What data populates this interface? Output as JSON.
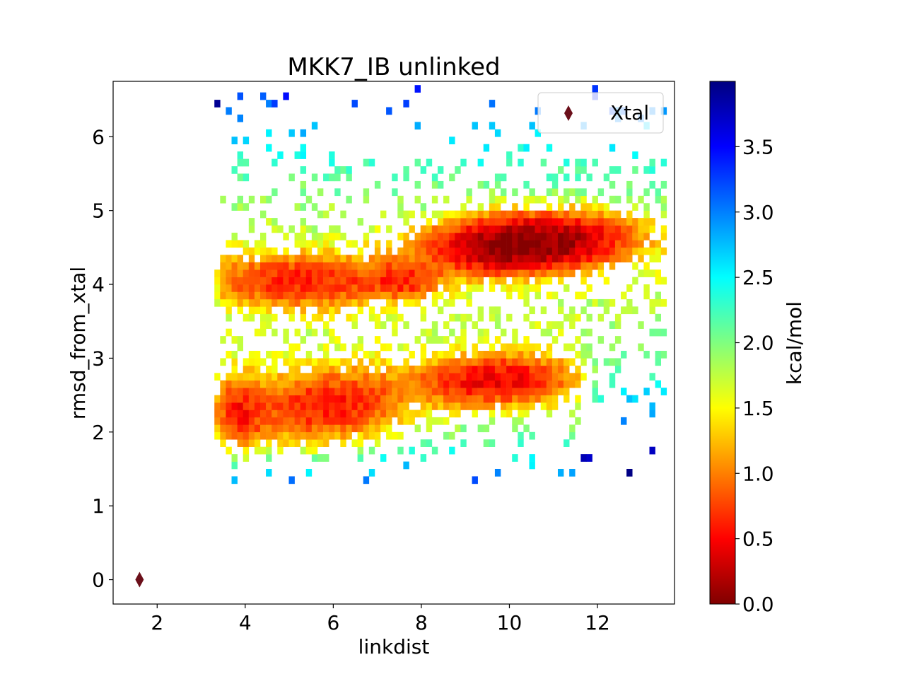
{
  "chart_data": {
    "type": "heatmap",
    "title": "MKK7_IB unlinked",
    "xlabel": "linkdist",
    "ylabel": "rmsd_from_xtal",
    "xlim": [
      1.0,
      13.75
    ],
    "ylim": [
      -0.33,
      6.75
    ],
    "xticks": [
      2,
      4,
      6,
      8,
      10,
      12
    ],
    "yticks": [
      0,
      1,
      2,
      3,
      4,
      5,
      6
    ],
    "colorbar": {
      "label": "kcal/mol",
      "range": [
        0.0,
        4.0
      ],
      "ticks": [
        "0.0",
        "0.5",
        "1.0",
        "1.5",
        "2.0",
        "2.5",
        "3.0",
        "3.5"
      ],
      "tick_values": [
        0.0,
        0.5,
        1.0,
        1.5,
        2.0,
        2.5,
        3.0,
        3.5
      ],
      "colormap": "jet_reversed"
    },
    "legend": {
      "position": "top-right",
      "entries": [
        {
          "label": "Xtal",
          "marker": "diamond",
          "color": "#6b0f1a"
        }
      ]
    },
    "reference_point": {
      "name": "Xtal",
      "x": 1.6,
      "y": 0.0
    },
    "bin_width": {
      "x": 0.13,
      "y": 0.1
    },
    "density_clusters": [
      {
        "x": 10.3,
        "y": 4.5,
        "sx": 1.25,
        "sy": 0.22,
        "rho": 0.18,
        "weight": 1.0,
        "extent_x": [
          7.5,
          13.0
        ],
        "extent_y": [
          3.8,
          5.3
        ]
      },
      {
        "x": 9.6,
        "y": 2.65,
        "sx": 1.0,
        "sy": 0.2,
        "rho": 0.1,
        "weight": 0.42,
        "extent_x": [
          7.8,
          11.7
        ],
        "extent_y": [
          2.2,
          3.2
        ]
      },
      {
        "x": 5.8,
        "y": 2.3,
        "sx": 1.1,
        "sy": 0.3,
        "rho": 0.2,
        "weight": 0.32,
        "extent_x": [
          3.4,
          7.6
        ],
        "extent_y": [
          1.5,
          3.0
        ]
      },
      {
        "x": 5.2,
        "y": 4.0,
        "sx": 1.3,
        "sy": 0.22,
        "rho": 0.0,
        "weight": 0.3,
        "extent_x": [
          3.3,
          7.5
        ],
        "extent_y": [
          3.6,
          4.4
        ]
      },
      {
        "x": 3.8,
        "y": 2.2,
        "sx": 0.35,
        "sy": 0.3,
        "rho": 0.0,
        "weight": 0.28,
        "extent_x": [
          3.3,
          4.6
        ],
        "extent_y": [
          1.3,
          2.8
        ]
      },
      {
        "x": 7.5,
        "y": 4.0,
        "sx": 0.5,
        "sy": 0.15,
        "rho": 0.0,
        "weight": 0.25,
        "extent_x": [
          7.0,
          8.3
        ],
        "extent_y": [
          3.7,
          4.3
        ]
      }
    ],
    "sparse_region": {
      "x": [
        3.3,
        13.5
      ],
      "y": [
        1.3,
        6.6
      ]
    }
  }
}
